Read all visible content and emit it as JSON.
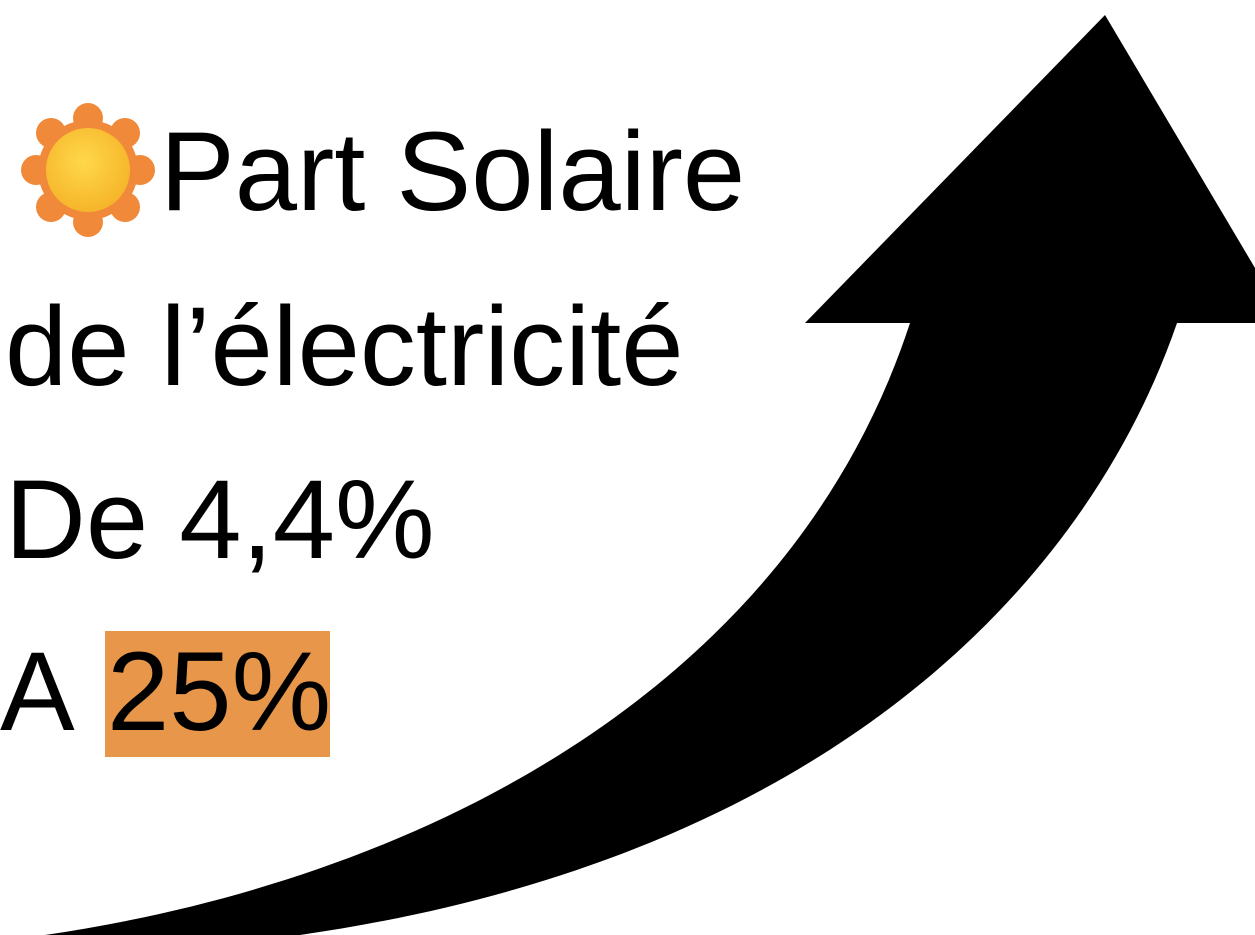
{
  "lines": [
    "Part Solaire",
    "de l’électricité",
    "De 4,4%"
  ],
  "last_line": {
    "prefix": "A",
    "highlight": "25%"
  }
}
